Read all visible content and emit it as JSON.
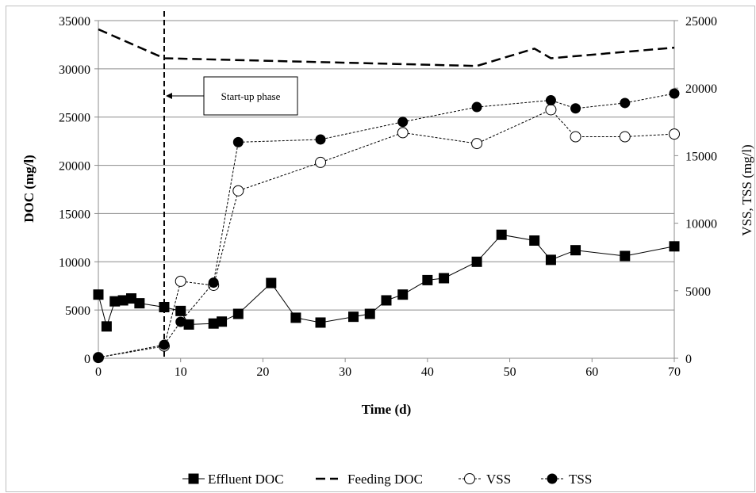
{
  "chart_data": {
    "type": "line",
    "xlabel": "Time (d)",
    "ylabel": "DOC (mg/l)",
    "y2label": "VSS, TSS (mg/l)",
    "xlim": [
      0,
      70
    ],
    "ylim": [
      0,
      35000
    ],
    "y2lim": [
      0,
      25000
    ],
    "x_ticks": [
      0,
      10,
      20,
      30,
      40,
      50,
      60,
      70
    ],
    "y_ticks": [
      0,
      5000,
      10000,
      15000,
      20000,
      25000,
      30000,
      35000
    ],
    "y2_ticks": [
      0,
      5000,
      10000,
      15000,
      20000,
      25000
    ],
    "grid": "horizontal",
    "legend_position": "bottom",
    "annotation": {
      "text": "Start-up phase",
      "x": 8
    },
    "series": [
      {
        "name": "Effluent DOC",
        "axis": "left",
        "style": "solid-filled-square",
        "x": [
          0,
          1,
          2,
          3,
          4,
          5,
          8,
          10,
          11,
          14,
          15,
          17,
          21,
          24,
          27,
          31,
          33,
          35,
          37,
          40,
          42,
          46,
          49,
          53,
          55,
          58,
          64,
          70
        ],
        "y": [
          6600,
          3300,
          5900,
          6000,
          6200,
          5700,
          5300,
          4900,
          3500,
          3600,
          3800,
          4600,
          7800,
          4200,
          3700,
          4300,
          4600,
          6000,
          6600,
          8100,
          8300,
          10000,
          12800,
          12200,
          10200,
          11200,
          10600,
          11600
        ]
      },
      {
        "name": "Feeding DOC",
        "axis": "left",
        "style": "long-dash",
        "x": [
          0,
          8,
          46,
          53,
          55,
          70
        ],
        "y": [
          34100,
          31100,
          30300,
          32100,
          31100,
          32200
        ]
      },
      {
        "name": "VSS",
        "axis": "right",
        "style": "dotted-open-circle",
        "x": [
          0,
          8,
          10,
          14,
          17,
          27,
          37,
          46,
          55,
          58,
          64,
          70
        ],
        "y": [
          50,
          900,
          5700,
          5400,
          12400,
          14500,
          16700,
          15900,
          18400,
          16400,
          16400,
          16600
        ]
      },
      {
        "name": "TSS",
        "axis": "right",
        "style": "dotted-filled-circle",
        "x": [
          0,
          8,
          10,
          14,
          17,
          27,
          37,
          46,
          55,
          58,
          64,
          70
        ],
        "y": [
          50,
          1000,
          2700,
          5600,
          16000,
          16200,
          17500,
          18600,
          19100,
          18500,
          18900,
          19600
        ]
      }
    ]
  }
}
